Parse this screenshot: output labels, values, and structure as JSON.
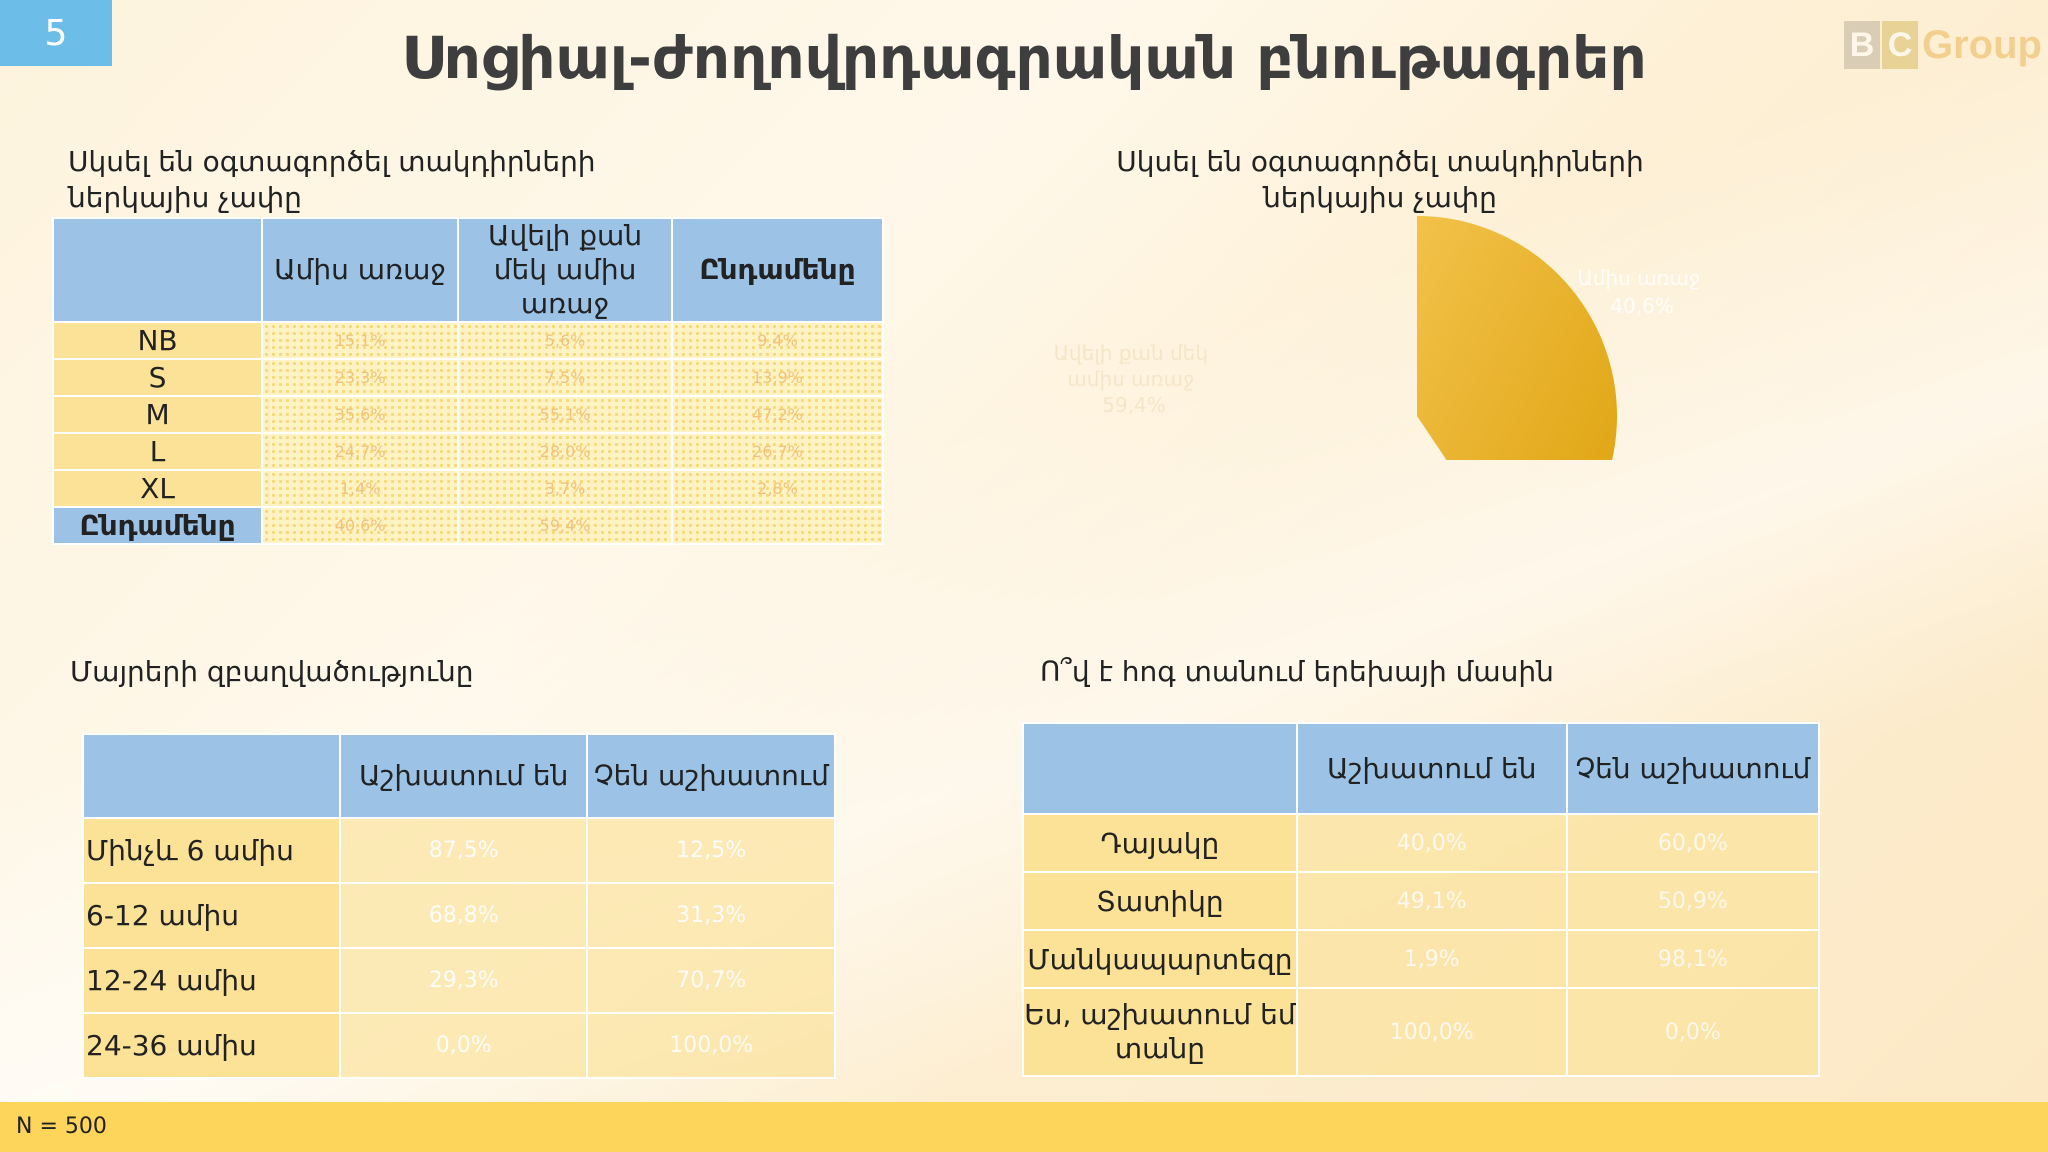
{
  "slide": {
    "number": "5",
    "title": "Սոցիալ-ժողովրդագրական բնութագրեր",
    "footer": "N = 500"
  },
  "logo": {
    "b": "B",
    "c": "C",
    "group": "Group"
  },
  "size_table": {
    "caption_line1": "Սկսել են օգտագործել տակդիրների",
    "caption_line2": "ներկայիս չափը",
    "headers": [
      "",
      "Ամիս առաջ",
      "Ավելի քան մեկ ամիս առաջ",
      "Ընդամենը"
    ],
    "rows": [
      {
        "label": "NB",
        "values": [
          "15,1%",
          "5,6%",
          "9,4%"
        ]
      },
      {
        "label": "S",
        "values": [
          "23,3%",
          "7,5%",
          "13,9%"
        ]
      },
      {
        "label": "M",
        "values": [
          "35,6%",
          "55,1%",
          "47,2%"
        ]
      },
      {
        "label": "L",
        "values": [
          "24,7%",
          "28,0%",
          "26,7%"
        ]
      },
      {
        "label": "XL",
        "values": [
          "1,4%",
          "3,7%",
          "2,8%"
        ]
      },
      {
        "label": "Ընդամենը",
        "values": [
          "40,6%",
          "59,4%",
          ""
        ]
      }
    ]
  },
  "pie": {
    "caption_line1": "Սկսել են օգտագործել տակդիրների",
    "caption_line2": "ներկայիս չափը",
    "slices": [
      {
        "label_line1": "Ավելի քան մեկ",
        "label_line2": "ամիս առաջ",
        "label_line3": "59,4%",
        "value": 59.4,
        "color": "#fdf3dd"
      },
      {
        "label_line1": "Ամիս առաջ",
        "label_line2": "40,6%",
        "value": 40.6,
        "color": "#e8b01a"
      }
    ]
  },
  "mothers_table": {
    "caption": "Մայրերի զբաղվածությունը",
    "headers": [
      "",
      "Աշխատում են",
      "Չեն աշխատում"
    ],
    "rows": [
      {
        "label": "Մինչև 6 ամիս",
        "values": [
          "87,5%",
          "12,5%"
        ]
      },
      {
        "label": "6-12 ամիս",
        "values": [
          "68,8%",
          "31,3%"
        ]
      },
      {
        "label": "12-24 ամիս",
        "values": [
          "29,3%",
          "70,7%"
        ]
      },
      {
        "label": "24-36 ամիս",
        "values": [
          "0,0%",
          "100,0%"
        ]
      }
    ]
  },
  "care_table": {
    "caption": "Ո՞վ է հոգ տանում երեխայի մասին",
    "headers": [
      "",
      "Աշխատում են",
      "Չեն աշխատում"
    ],
    "rows": [
      {
        "label": "Դայակը",
        "values": [
          "40,0%",
          "60,0%"
        ]
      },
      {
        "label": "Տատիկը",
        "values": [
          "49,1%",
          "50,9%"
        ]
      },
      {
        "label": "Մանկապարտեզը",
        "values": [
          "1,9%",
          "98,1%"
        ]
      },
      {
        "label": "Ես, աշխատում եմ տանը",
        "values": [
          "100,0%",
          "0,0%"
        ]
      }
    ]
  }
}
